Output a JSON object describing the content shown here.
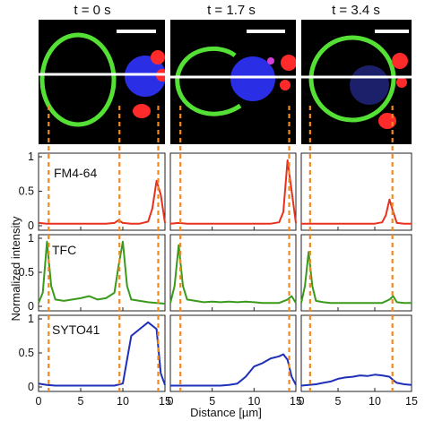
{
  "figure": {
    "time_labels": [
      "t = 0 s",
      "t = 1.7 s",
      "t = 3.4 s"
    ],
    "ylabel": "Normalized intensity",
    "xlabel": "Distance [µm]",
    "channel_labels": [
      "FM4-64",
      "TFC",
      "SYTO41"
    ],
    "colors": {
      "fm4_64": "#e8301e",
      "tfc": "#3a9a1c",
      "syto41": "#1f2fb8",
      "guide_lines": "#f08a1f",
      "micrograph_bg": "#000000",
      "membrane": "#55e035",
      "nucleus": "#2a2fe6",
      "fm_spots": "#ff2a2a",
      "scale_bar": "#ffffff",
      "line_scan": "#ffffff"
    }
  },
  "chart_data": [
    {
      "type": "line",
      "panel": "t = 0 s / FM4-64",
      "x": [
        0,
        1,
        2,
        3,
        4,
        5,
        6,
        7,
        8,
        9,
        9.5,
        10,
        11,
        12,
        13,
        13.5,
        14,
        14.5,
        15
      ],
      "series": [
        {
          "name": "FM4-64",
          "values": [
            0.04,
            0.03,
            0.03,
            0.03,
            0.03,
            0.03,
            0.03,
            0.03,
            0.03,
            0.04,
            0.08,
            0.04,
            0.03,
            0.03,
            0.06,
            0.25,
            0.65,
            0.45,
            0.04
          ]
        }
      ],
      "xlim": [
        0,
        15
      ],
      "ylim": [
        0,
        1
      ],
      "yticks": [
        0,
        0.5,
        1
      ]
    },
    {
      "type": "line",
      "panel": "t = 1.7 s / FM4-64",
      "x": [
        0,
        1,
        2,
        3,
        4,
        5,
        6,
        7,
        8,
        9,
        10,
        11,
        12,
        13,
        13.5,
        14,
        14.5,
        15
      ],
      "series": [
        {
          "name": "FM4-64",
          "values": [
            0.03,
            0.04,
            0.03,
            0.03,
            0.03,
            0.03,
            0.03,
            0.03,
            0.03,
            0.03,
            0.03,
            0.03,
            0.03,
            0.05,
            0.2,
            0.95,
            0.5,
            0.04
          ]
        }
      ],
      "xlim": [
        0,
        15
      ],
      "ylim": [
        0,
        1
      ],
      "yticks": [
        0,
        0.5,
        1
      ]
    },
    {
      "type": "line",
      "panel": "t = 3.4 s / FM4-64",
      "x": [
        0,
        1,
        2,
        3,
        4,
        5,
        6,
        7,
        8,
        9,
        10,
        11,
        11.5,
        12,
        12.5,
        13,
        14,
        15
      ],
      "series": [
        {
          "name": "FM4-64",
          "values": [
            0.03,
            0.03,
            0.03,
            0.03,
            0.03,
            0.03,
            0.03,
            0.03,
            0.03,
            0.03,
            0.03,
            0.05,
            0.15,
            0.38,
            0.2,
            0.04,
            0.03,
            0.03
          ]
        }
      ],
      "xlim": [
        0,
        15
      ],
      "ylim": [
        0,
        1
      ],
      "yticks": [
        0,
        0.5,
        1
      ]
    },
    {
      "type": "line",
      "panel": "t = 0 s / TFC",
      "x": [
        0,
        0.5,
        1,
        1.5,
        2,
        3,
        4,
        5,
        6,
        7,
        8,
        9,
        9.5,
        10,
        10.5,
        11,
        12,
        13,
        14,
        15
      ],
      "series": [
        {
          "name": "TFC",
          "values": [
            0.05,
            0.2,
            0.95,
            0.3,
            0.1,
            0.08,
            0.1,
            0.12,
            0.15,
            0.1,
            0.12,
            0.2,
            0.6,
            0.95,
            0.3,
            0.1,
            0.08,
            0.06,
            0.05,
            0.04
          ]
        }
      ],
      "xlim": [
        0,
        15
      ],
      "ylim": [
        0,
        1
      ],
      "yticks": [
        0,
        0.5,
        1
      ]
    },
    {
      "type": "line",
      "panel": "t = 1.7 s / TFC",
      "x": [
        0,
        0.5,
        1,
        1.5,
        2,
        3,
        4,
        5,
        6,
        7,
        8,
        9,
        10,
        11,
        12,
        13,
        14,
        14.5,
        15
      ],
      "series": [
        {
          "name": "TFC",
          "values": [
            0.05,
            0.3,
            0.9,
            0.3,
            0.1,
            0.08,
            0.06,
            0.07,
            0.06,
            0.07,
            0.06,
            0.07,
            0.06,
            0.05,
            0.05,
            0.05,
            0.1,
            0.15,
            0.05
          ]
        }
      ],
      "xlim": [
        0,
        15
      ],
      "ylim": [
        0,
        1
      ],
      "yticks": [
        0,
        0.5,
        1
      ]
    },
    {
      "type": "line",
      "panel": "t = 3.4 s / TFC",
      "x": [
        0,
        0.5,
        1,
        1.5,
        2,
        3,
        4,
        5,
        6,
        7,
        8,
        9,
        10,
        11,
        12,
        12.5,
        13,
        14,
        15
      ],
      "series": [
        {
          "name": "TFC",
          "values": [
            0.05,
            0.3,
            0.8,
            0.3,
            0.08,
            0.06,
            0.05,
            0.05,
            0.05,
            0.05,
            0.05,
            0.05,
            0.05,
            0.05,
            0.1,
            0.15,
            0.06,
            0.05,
            0.05
          ]
        }
      ],
      "xlim": [
        0,
        15
      ],
      "ylim": [
        0,
        1
      ],
      "yticks": [
        0,
        0.5,
        1
      ]
    },
    {
      "type": "line",
      "panel": "t = 0 s / SYTO41",
      "x": [
        0,
        1,
        2,
        3,
        4,
        5,
        6,
        7,
        8,
        9,
        10,
        10.5,
        11,
        12,
        13,
        14,
        14.5,
        15
      ],
      "series": [
        {
          "name": "SYTO41",
          "values": [
            0.05,
            0.03,
            0.02,
            0.02,
            0.02,
            0.02,
            0.02,
            0.02,
            0.02,
            0.02,
            0.05,
            0.4,
            0.75,
            0.85,
            0.95,
            0.85,
            0.2,
            0.03
          ]
        }
      ],
      "xlim": [
        0,
        15
      ],
      "ylim": [
        0,
        1
      ],
      "yticks": [
        0,
        0.5,
        1
      ]
    },
    {
      "type": "line",
      "panel": "t = 1.7 s / SYTO41",
      "x": [
        0,
        1,
        2,
        3,
        4,
        5,
        6,
        7,
        8,
        9,
        10,
        11,
        12,
        13,
        13.5,
        14,
        14.5,
        15
      ],
      "series": [
        {
          "name": "SYTO41",
          "values": [
            0.02,
            0.02,
            0.02,
            0.02,
            0.02,
            0.02,
            0.02,
            0.03,
            0.05,
            0.15,
            0.3,
            0.35,
            0.42,
            0.45,
            0.48,
            0.4,
            0.15,
            0.03
          ]
        }
      ],
      "xlim": [
        0,
        15
      ],
      "ylim": [
        0,
        1
      ],
      "yticks": [
        0,
        0.5,
        1
      ]
    },
    {
      "type": "line",
      "panel": "t = 3.4 s / SYTO41",
      "x": [
        0,
        1,
        2,
        3,
        4,
        5,
        6,
        7,
        8,
        9,
        10,
        11,
        12,
        12.5,
        13,
        14,
        15
      ],
      "series": [
        {
          "name": "SYTO41",
          "values": [
            0.02,
            0.03,
            0.04,
            0.06,
            0.08,
            0.12,
            0.14,
            0.15,
            0.17,
            0.16,
            0.18,
            0.17,
            0.15,
            0.1,
            0.06,
            0.04,
            0.03
          ]
        }
      ],
      "xlim": [
        0,
        15
      ],
      "ylim": [
        0,
        1
      ],
      "yticks": [
        0,
        0.5,
        1
      ]
    }
  ],
  "x_ticks": {
    "values": [
      0,
      5,
      10,
      15
    ],
    "labels": [
      "0",
      "5",
      "10",
      "15"
    ]
  },
  "y_ticks": {
    "values": [
      0,
      0.5,
      1
    ],
    "labels": [
      "0",
      "0.5",
      "1"
    ]
  },
  "guide_x_values": [
    [
      1.2,
      9.6,
      14.2
    ],
    [
      1.2,
      14.2
    ],
    [
      1.2,
      12.4
    ]
  ]
}
